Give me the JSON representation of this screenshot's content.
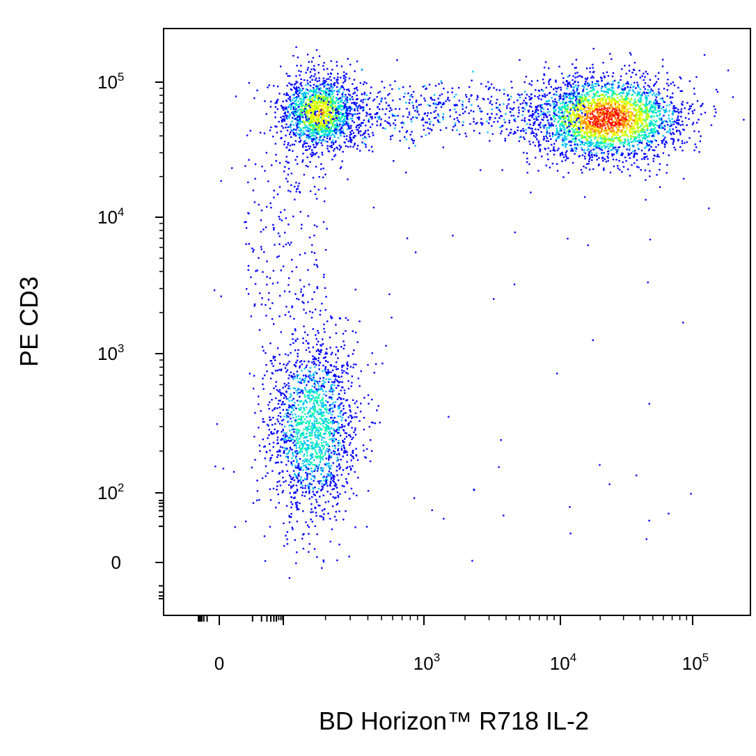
{
  "chart_data": {
    "type": "scatter",
    "subtype": "flow-cytometry density dot plot (biexponential axes)",
    "xlabel": "BD Horizon™ R718 IL-2",
    "ylabel": "PE CD3",
    "x_scale": "biexponential",
    "y_scale": "biexponential",
    "xlim": [
      -60,
      150000
    ],
    "ylim": [
      -40,
      220000
    ],
    "x_ticks": [
      {
        "label": "0",
        "value": 0
      },
      {
        "label": "10",
        "exp": "3",
        "value": 1000
      },
      {
        "label": "10",
        "exp": "4",
        "value": 10000
      },
      {
        "label": "10",
        "exp": "5",
        "value": 100000
      }
    ],
    "y_ticks": [
      {
        "label": "0",
        "value": 0
      },
      {
        "label": "10",
        "exp": "2",
        "value": 100
      },
      {
        "label": "10",
        "exp": "3",
        "value": 1000
      },
      {
        "label": "10",
        "exp": "4",
        "value": 10000
      },
      {
        "label": "10",
        "exp": "5",
        "value": 100000
      }
    ],
    "density_colors": [
      "#0000ff",
      "#00bfff",
      "#00ffaa",
      "#aaff00",
      "#ffff00",
      "#ff8800",
      "#ff0000"
    ],
    "populations": [
      {
        "name": "CD3+ IL-2-",
        "x_center": 180,
        "y_center": 60000,
        "relative_density": 0.7
      },
      {
        "name": "CD3+ IL-2+",
        "x_center": 22000,
        "y_center": 55000,
        "relative_density": 1.0
      },
      {
        "name": "CD3- IL-2-",
        "x_center": 160,
        "y_center": 300,
        "relative_density": 0.45
      }
    ],
    "grid": false,
    "legend": "none"
  }
}
